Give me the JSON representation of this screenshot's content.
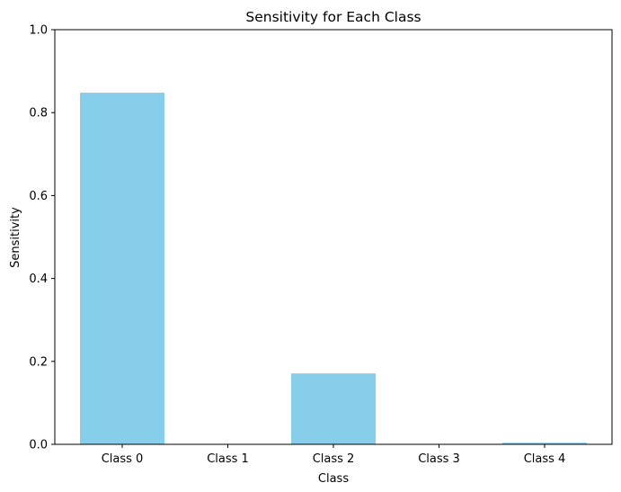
{
  "chart_data": {
    "type": "bar",
    "title": "Sensitivity for Each Class",
    "xlabel": "Class",
    "ylabel": "Sensitivity",
    "categories": [
      "Class 0",
      "Class 1",
      "Class 2",
      "Class 3",
      "Class 4"
    ],
    "values": [
      0.848,
      0.0,
      0.171,
      0.0,
      0.004
    ],
    "ylim": [
      0,
      1
    ],
    "yticks": [
      0.0,
      0.2,
      0.4,
      0.6,
      0.8,
      1.0
    ],
    "ytick_labels": [
      "0.0",
      "0.2",
      "0.4",
      "0.6",
      "0.8",
      "1.0"
    ],
    "bar_color": "#87ceeb",
    "grid": false,
    "legend": "none"
  }
}
